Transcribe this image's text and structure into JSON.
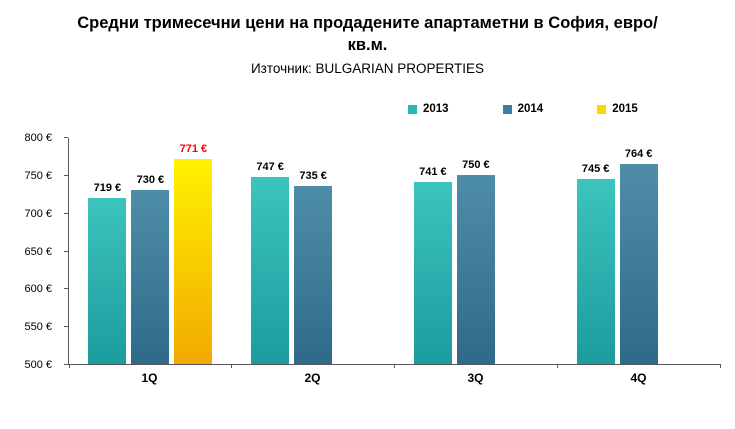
{
  "title": "Средни тримесечни цени на продадените апартаметни в София, евро/кв.м.",
  "subtitle": "Източник: BULGARIAN PROPERTIES",
  "chart_data": {
    "type": "bar",
    "title": "Средни тримесечни цени на продадените апартаметни в София, евро/кв.м.",
    "subtitle": "Източник: BULGARIAN PROPERTIES",
    "categories": [
      "1Q",
      "2Q",
      "3Q",
      "4Q"
    ],
    "series": [
      {
        "name": "2013",
        "values": [
          719,
          747,
          741,
          745
        ],
        "color_top": "#3CC4BE",
        "color_bottom": "#1B9C9E",
        "legend_color": "#29B6B4",
        "label_color": "#000000"
      },
      {
        "name": "2014",
        "values": [
          730,
          735,
          750,
          764
        ],
        "color_top": "#4E8DA9",
        "color_bottom": "#2F6B89",
        "legend_color": "#3F7E9D",
        "label_color": "#000000"
      },
      {
        "name": "2015",
        "values": [
          771,
          null,
          null,
          null
        ],
        "color_top": "#FFF200",
        "color_bottom": "#F2A900",
        "legend_color": "#FFD500",
        "label_color": "#FF0000"
      }
    ],
    "ylim": [
      500,
      800
    ],
    "ytick_step": 50,
    "value_suffix": " €",
    "y_tick_labels": [
      "500 €",
      "550 €",
      "600 €",
      "650 €",
      "700 €",
      "750 €",
      "800 €"
    ],
    "grid": false,
    "legend_position": "top-right",
    "axis_color": "#595959"
  }
}
